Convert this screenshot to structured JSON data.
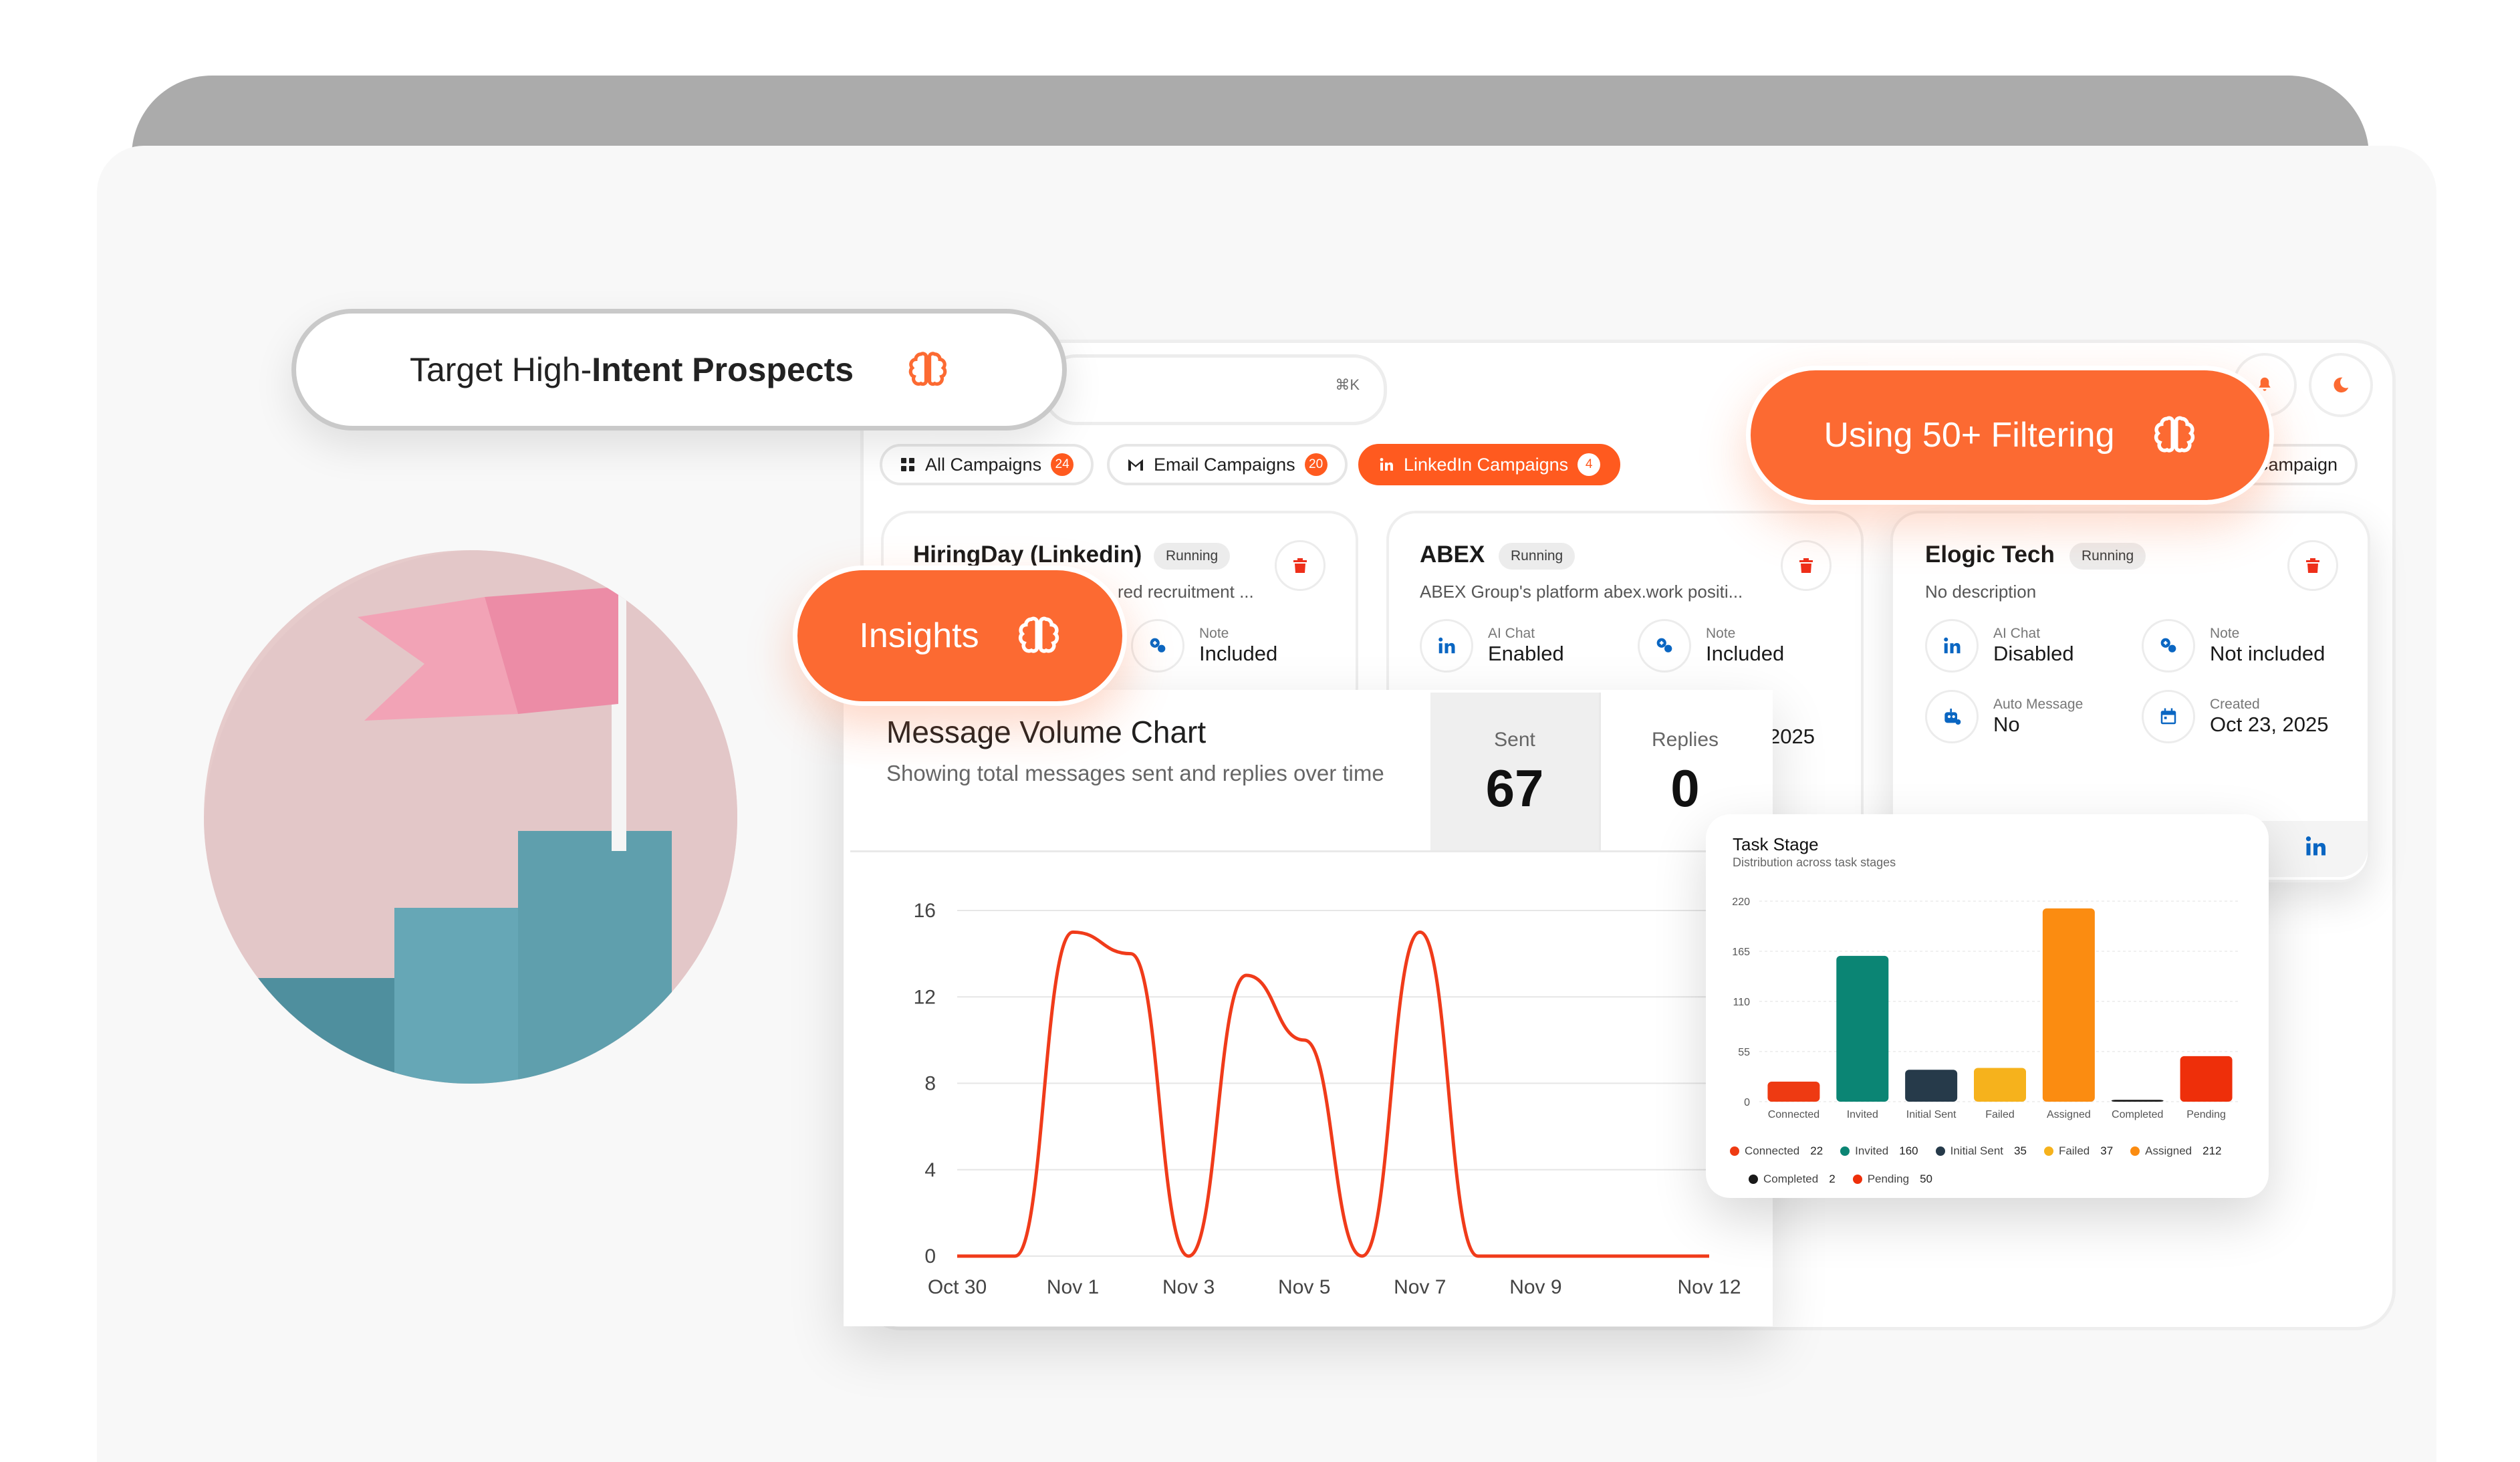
{
  "search": {
    "shortcut": "⌘K"
  },
  "tabs": [
    {
      "label": "All Campaigns",
      "count": "24"
    },
    {
      "label": "Email Campaigns",
      "count": "20"
    },
    {
      "label": "LinkedIn Campaigns",
      "count": "4"
    }
  ],
  "new_campaign_label": "Campaign",
  "campaigns": [
    {
      "name": "HiringDay (Linkedin)",
      "status": "Running",
      "description": "red recruitment ...",
      "fields": [
        {
          "key": "Note",
          "value": "Included"
        }
      ]
    },
    {
      "name": "ABEX",
      "status": "Running",
      "description": "ABEX Group's platform abex.work positi...",
      "fields": [
        {
          "key": "AI Chat",
          "value": "Enabled"
        },
        {
          "key": "Note",
          "value": "Included"
        }
      ],
      "created_fragment": "2025"
    },
    {
      "name": "Elogic Tech",
      "status": "Running",
      "description": "No description",
      "fields": [
        {
          "key": "AI Chat",
          "value": "Disabled"
        },
        {
          "key": "Note",
          "value": "Not included"
        },
        {
          "key": "Auto Message",
          "value": "No"
        },
        {
          "key": "Created",
          "value": "Oct 23, 2025"
        }
      ]
    }
  ],
  "callouts": {
    "target": {
      "prefix": "Target High-",
      "bold": "Intent Prospects"
    },
    "filtering": "Using 50+ Filtering",
    "insights": "Insights"
  },
  "colors": {
    "accent": "#fc6a32",
    "linkedin": "#0a66c2",
    "line": "#f03b1a"
  },
  "message_chart": {
    "title": "Message Volume Chart",
    "subtitle": "Showing total messages sent and replies over time",
    "stats": [
      {
        "label": "Sent",
        "value": "67"
      },
      {
        "label": "Replies",
        "value": "0"
      }
    ]
  },
  "task_stage": {
    "title": "Task Stage",
    "subtitle": "Distribution across task stages"
  },
  "chart_data": [
    {
      "type": "line",
      "title": "Message Volume Chart",
      "x_ticks": [
        "Oct 30",
        "Nov 1",
        "Nov 3",
        "Nov 5",
        "Nov 7",
        "Nov 9",
        "Nov 12"
      ],
      "y_ticks": [
        0,
        4,
        8,
        12,
        16
      ],
      "ylim": [
        0,
        16
      ],
      "grid": true,
      "x": [
        "Oct 30",
        "Oct 31",
        "Nov 1",
        "Nov 2",
        "Nov 3",
        "Nov 4",
        "Nov 5",
        "Nov 6",
        "Nov 7",
        "Nov 8",
        "Nov 9",
        "Nov 10",
        "Nov 11",
        "Nov 12"
      ],
      "series": [
        {
          "values": [
            0,
            0,
            15,
            14,
            0,
            13,
            10,
            0,
            15,
            0,
            0,
            0,
            0,
            0
          ]
        }
      ]
    },
    {
      "type": "bar",
      "title": "Task Stage",
      "categories": [
        "Connected",
        "Invited",
        "Initial Sent",
        "Failed",
        "Assigned",
        "Completed",
        "Pending"
      ],
      "values": [
        22,
        160,
        35,
        37,
        212,
        2,
        50
      ],
      "colors": [
        "#ee3a12",
        "#0b8574",
        "#263a4a",
        "#f6b21c",
        "#fb8c11",
        "#1a1a1a",
        "#ee2f0a"
      ],
      "y_ticks": [
        0,
        55,
        110,
        165,
        220
      ],
      "ylim": [
        0,
        220
      ],
      "grid": true,
      "legend": "bottom"
    }
  ]
}
